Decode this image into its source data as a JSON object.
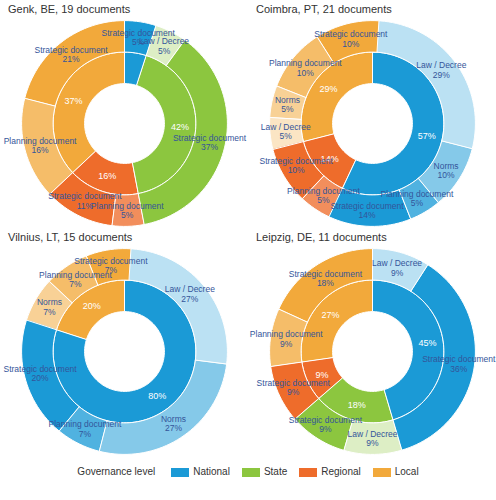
{
  "chart_data": [
    {
      "type": "sunburst",
      "title": "Genk, BE, 19 documents",
      "data_labels": true,
      "series": [
        {
          "name": "National",
          "value": 5,
          "children": [
            {
              "name": "Strategic document",
              "value": 5,
              "label": "5%"
            }
          ]
        },
        {
          "name": "State",
          "value": 42,
          "label": "42%",
          "children": [
            {
              "name": "Law / Decree",
              "value": 5,
              "label": "5%"
            },
            {
              "name": "Strategic document",
              "value": 37,
              "label": "37%"
            }
          ]
        },
        {
          "name": "Regional",
          "value": 16,
          "label": "16%",
          "children": [
            {
              "name": "Planning document",
              "value": 5,
              "label": "5%"
            },
            {
              "name": "Strategic document",
              "value": 11,
              "label": "11%"
            }
          ]
        },
        {
          "name": "Local",
          "value": 37,
          "label": "37%",
          "children": [
            {
              "name": "Planning document",
              "value": 16,
              "label": "16%"
            },
            {
              "name": "Strategic document",
              "value": 21,
              "label": "21%"
            }
          ]
        }
      ]
    },
    {
      "type": "sunburst",
      "title": "Coimbra, PT, 21 documents",
      "data_labels": true,
      "series": [
        {
          "name": "National",
          "value": 57,
          "label": "57%",
          "children": [
            {
              "name": "Law / Decree",
              "value": 29,
              "label": "29%"
            },
            {
              "name": "Norms",
              "value": 10,
              "label": "10%"
            },
            {
              "name": "Planning document",
              "value": 5,
              "label": "5%"
            },
            {
              "name": "Strategic document",
              "value": 14,
              "label": "14%"
            }
          ]
        },
        {
          "name": "Regional",
          "value": 14,
          "label": "14%",
          "children": [
            {
              "name": "Planning document",
              "value": 5,
              "label": "5%"
            },
            {
              "name": "Strategic document",
              "value": 10,
              "label": "10%"
            }
          ]
        },
        {
          "name": "Local",
          "value": 29,
          "label": "29%",
          "children": [
            {
              "name": "Law / Decree",
              "value": 5,
              "label": "5%"
            },
            {
              "name": "Norms",
              "value": 5,
              "label": "5%"
            },
            {
              "name": "Planning document",
              "value": 10,
              "label": "10%"
            },
            {
              "name": "Strategic document",
              "value": 10,
              "label": "10%"
            }
          ]
        }
      ]
    },
    {
      "type": "sunburst",
      "title": "Vilnius, LT, 15 documents",
      "data_labels": true,
      "series": [
        {
          "name": "National",
          "value": 80,
          "label": "80%",
          "children": [
            {
              "name": "Law / Decree",
              "value": 27,
              "label": "27%"
            },
            {
              "name": "Norms",
              "value": 27,
              "label": "27%"
            },
            {
              "name": "Planning document",
              "value": 7,
              "label": "7%"
            },
            {
              "name": "Strategic document",
              "value": 20,
              "label": "20%"
            }
          ]
        },
        {
          "name": "Local",
          "value": 20,
          "label": "20%",
          "children": [
            {
              "name": "Norms",
              "value": 7,
              "label": "7%"
            },
            {
              "name": "Planning document",
              "value": 7,
              "label": "7%"
            },
            {
              "name": "Strategic document",
              "value": 7,
              "label": "7%"
            }
          ]
        }
      ]
    },
    {
      "type": "sunburst",
      "title": "Leipzig, DE, 11 documents",
      "data_labels": true,
      "series": [
        {
          "name": "National",
          "value": 45,
          "label": "45%",
          "children": [
            {
              "name": "Law / Decree",
              "value": 9,
              "label": "9%"
            },
            {
              "name": "Strategic document",
              "value": 36,
              "label": "36%"
            }
          ]
        },
        {
          "name": "State",
          "value": 18,
          "label": "18%",
          "children": [
            {
              "name": "Law / Decree",
              "value": 9,
              "label": "9%"
            },
            {
              "name": "Strategic document",
              "value": 9,
              "label": "9%"
            }
          ]
        },
        {
          "name": "Regional",
          "value": 9,
          "label": "9%",
          "children": [
            {
              "name": "Strategic document",
              "value": 9,
              "label": "9%"
            }
          ]
        },
        {
          "name": "Local",
          "value": 27,
          "label": "27%",
          "children": [
            {
              "name": "Planning document",
              "value": 9,
              "label": "9%"
            },
            {
              "name": "Strategic document",
              "value": 18,
              "label": "18%"
            }
          ]
        }
      ]
    }
  ],
  "legend_title": "Governance level",
  "levels": [
    {
      "name": "National",
      "color": "#1b9ad6"
    },
    {
      "name": "State",
      "color": "#8cc63f"
    },
    {
      "name": "Regional",
      "color": "#ee6c2b"
    },
    {
      "name": "Local",
      "color": "#f2a93b"
    }
  ]
}
